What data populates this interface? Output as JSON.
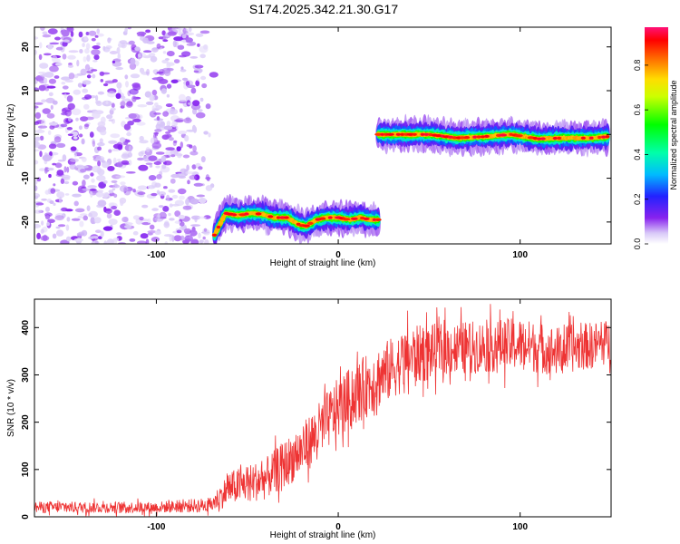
{
  "page_title": "S174.2025.342.21.30.G17",
  "chart_data": [
    {
      "type": "heatmap",
      "title": "S174.2025.342.21.30.G17",
      "xlabel": "Height of straight line (km)",
      "ylabel": "Frequency (Hz)",
      "xlim": [
        -167,
        150
      ],
      "ylim": [
        -25,
        24.5
      ],
      "x_ticks": [
        -100,
        0,
        100
      ],
      "x_tick_labels": [
        "-100",
        "0",
        "100"
      ],
      "y_ticks": [
        20,
        10,
        0,
        -10,
        -20
      ],
      "y_tick_labels": [
        "20",
        "10",
        "0",
        "-10",
        "-20"
      ],
      "colorbar": {
        "label": "Normalized spectral amplitude",
        "range": [
          0,
          0.97
        ],
        "ticks": [
          0,
          0.2,
          0.4,
          0.6,
          0.8
        ],
        "tick_labels": [
          "0.0",
          "0.2",
          "0.4",
          "0.6",
          "0.8"
        ]
      },
      "regions": [
        {
          "name": "noise",
          "x_range": [
            -167,
            -70
          ],
          "y_range": [
            -25,
            24.5
          ],
          "amplitude_range": [
            0.0,
            0.12
          ]
        },
        {
          "name": "track-low",
          "amplitude_peak": 0.97,
          "x": [
            -68,
            -62,
            -55,
            -48,
            -42,
            -35,
            -28,
            -22,
            -18,
            -12,
            -6,
            0,
            6,
            12,
            18,
            22
          ],
          "y": [
            -23,
            -18,
            -18.5,
            -18,
            -18.2,
            -19,
            -19,
            -20.5,
            -21,
            -19.5,
            -19,
            -19,
            -19.5,
            -19,
            -19.5,
            -19.5
          ]
        },
        {
          "name": "track-high",
          "amplitude_peak": 0.97,
          "x": [
            22,
            35,
            50,
            65,
            80,
            95,
            110,
            125,
            140,
            148
          ],
          "y": [
            0,
            0,
            0,
            -0.8,
            -0.5,
            0,
            -1,
            -0.8,
            -0.8,
            -0.5
          ]
        }
      ]
    },
    {
      "type": "line",
      "xlabel": "Height of straight line (km)",
      "ylabel": "SNR (10 * v/v)",
      "xlim": [
        -167,
        150
      ],
      "ylim": [
        0,
        460
      ],
      "x_ticks": [
        -100,
        0,
        100
      ],
      "x_tick_labels": [
        "-100",
        "0",
        "100"
      ],
      "y_ticks": [
        0,
        100,
        200,
        300,
        400
      ],
      "y_tick_labels": [
        "0",
        "100",
        "200",
        "300",
        "400"
      ],
      "series": [
        {
          "name": "SNR",
          "color": "#ee3333",
          "x": [
            -167,
            -100,
            -70,
            -60,
            -40,
            -20,
            0,
            20,
            40,
            60,
            80,
            100,
            120,
            150
          ],
          "y": [
            20,
            20,
            25,
            60,
            80,
            140,
            230,
            290,
            340,
            355,
            360,
            365,
            350,
            370
          ],
          "noise_amplitude": [
            15,
            15,
            20,
            45,
            55,
            70,
            80,
            85,
            80,
            70,
            70,
            70,
            65,
            60
          ]
        }
      ]
    }
  ]
}
